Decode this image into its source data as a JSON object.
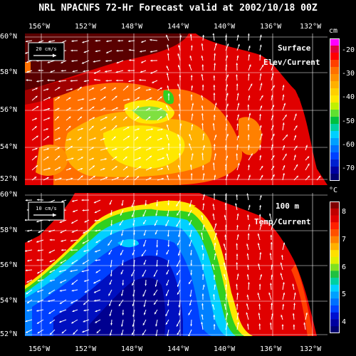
{
  "title": "NRL NPACNFS 72-Hr Forecast valid at 2002/10/18 00Z",
  "lon_labels": [
    "156°W",
    "152°W",
    "148°W",
    "144°W",
    "140°W",
    "136°W",
    "132°W"
  ],
  "lat_labels": [
    "60°N",
    "58°N",
    "56°N",
    "54°N",
    "52°N"
  ],
  "top_panel": {
    "label_line1": "Surface",
    "label_line2": "Elev/Current",
    "scale_label": "20 cm/s",
    "colorbar_unit": "cm",
    "colorbar_ticks": [
      "-20",
      "-30",
      "-40",
      "-50",
      "-60",
      "-70"
    ],
    "colorbar_range": [
      -75,
      -15
    ]
  },
  "bottom_panel": {
    "label_line1": "100 m",
    "label_line2": "Temp/Current",
    "scale_label": "10 cm/s",
    "colorbar_unit": "°C",
    "colorbar_ticks": [
      "8",
      "7",
      "6",
      "5",
      "4"
    ],
    "colorbar_range": [
      3.6,
      8.4
    ]
  },
  "colors": {
    "red": "#e00000",
    "orange": "#ff7000",
    "yellow": "#ffe800",
    "green": "#30d020",
    "cyan": "#00d0ff",
    "blue": "#0040ff",
    "navy": "#000090",
    "maroon": "#5a0000"
  }
}
